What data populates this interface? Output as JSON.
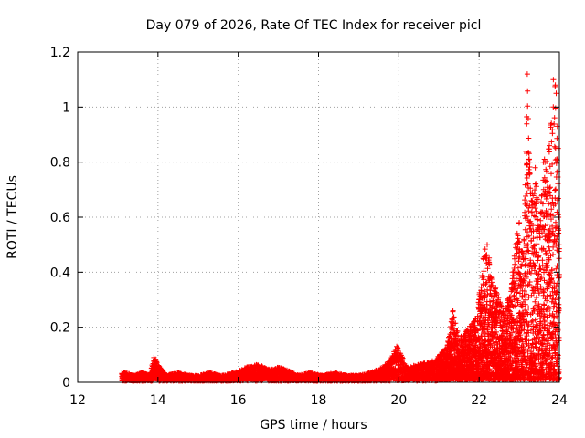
{
  "chart_data": {
    "type": "scatter",
    "title": "Day 079 of 2026, Rate Of TEC Index for receiver picl",
    "xlabel": "GPS time / hours",
    "ylabel": "ROTI / TECUs",
    "xlim": [
      12,
      24
    ],
    "ylim": [
      0,
      1.2
    ],
    "grid": true,
    "marker": "+",
    "color": "#ff0000",
    "x_ticks": [
      "12",
      "14",
      "16",
      "18",
      "20",
      "22",
      "24"
    ],
    "x_tick_values": [
      12,
      14,
      16,
      18,
      20,
      22,
      24
    ],
    "y_ticks": [
      "0",
      "0.2",
      "0.4",
      "0.6",
      "0.8",
      "1",
      "1.2"
    ],
    "y_tick_values": [
      0,
      0.2,
      0.4,
      0.6,
      0.8,
      1.0,
      1.2
    ],
    "data_start_hour": 13.1,
    "series": [
      {
        "name": "ROTI",
        "points": [
          [
            13.2,
            0.03
          ],
          [
            13.4,
            0.02
          ],
          [
            13.6,
            0.03
          ],
          [
            13.8,
            0.02
          ],
          [
            13.9,
            0.09
          ],
          [
            14.0,
            0.06
          ],
          [
            14.2,
            0.02
          ],
          [
            14.5,
            0.03
          ],
          [
            14.8,
            0.02
          ],
          [
            15.0,
            0.02
          ],
          [
            15.3,
            0.03
          ],
          [
            15.6,
            0.02
          ],
          [
            15.9,
            0.03
          ],
          [
            16.2,
            0.05
          ],
          [
            16.5,
            0.06
          ],
          [
            16.8,
            0.04
          ],
          [
            17.0,
            0.05
          ],
          [
            17.2,
            0.04
          ],
          [
            17.5,
            0.02
          ],
          [
            17.8,
            0.03
          ],
          [
            18.1,
            0.02
          ],
          [
            18.4,
            0.03
          ],
          [
            18.7,
            0.02
          ],
          [
            19.0,
            0.02
          ],
          [
            19.3,
            0.03
          ],
          [
            19.6,
            0.05
          ],
          [
            19.8,
            0.08
          ],
          [
            19.95,
            0.13
          ],
          [
            20.2,
            0.05
          ],
          [
            20.5,
            0.06
          ],
          [
            20.8,
            0.07
          ],
          [
            21.0,
            0.09
          ],
          [
            21.2,
            0.12
          ],
          [
            21.35,
            0.26
          ],
          [
            21.5,
            0.15
          ],
          [
            21.7,
            0.18
          ],
          [
            21.9,
            0.22
          ],
          [
            22.0,
            0.3
          ],
          [
            22.1,
            0.45
          ],
          [
            22.2,
            0.5
          ],
          [
            22.3,
            0.38
          ],
          [
            22.4,
            0.34
          ],
          [
            22.6,
            0.25
          ],
          [
            22.8,
            0.33
          ],
          [
            22.9,
            0.5
          ],
          [
            23.0,
            0.58
          ],
          [
            23.1,
            0.45
          ],
          [
            23.2,
            1.12
          ],
          [
            23.3,
            0.66
          ],
          [
            23.4,
            0.78
          ],
          [
            23.5,
            0.55
          ],
          [
            23.6,
            0.8
          ],
          [
            23.75,
            0.86
          ],
          [
            23.85,
            1.1
          ],
          [
            23.9,
            1.08
          ],
          [
            23.92,
            1.05
          ],
          [
            23.95,
            0.93
          ],
          [
            23.97,
            0.85
          ],
          [
            23.98,
            0.6
          ],
          [
            23.99,
            0.5
          ]
        ]
      }
    ]
  }
}
